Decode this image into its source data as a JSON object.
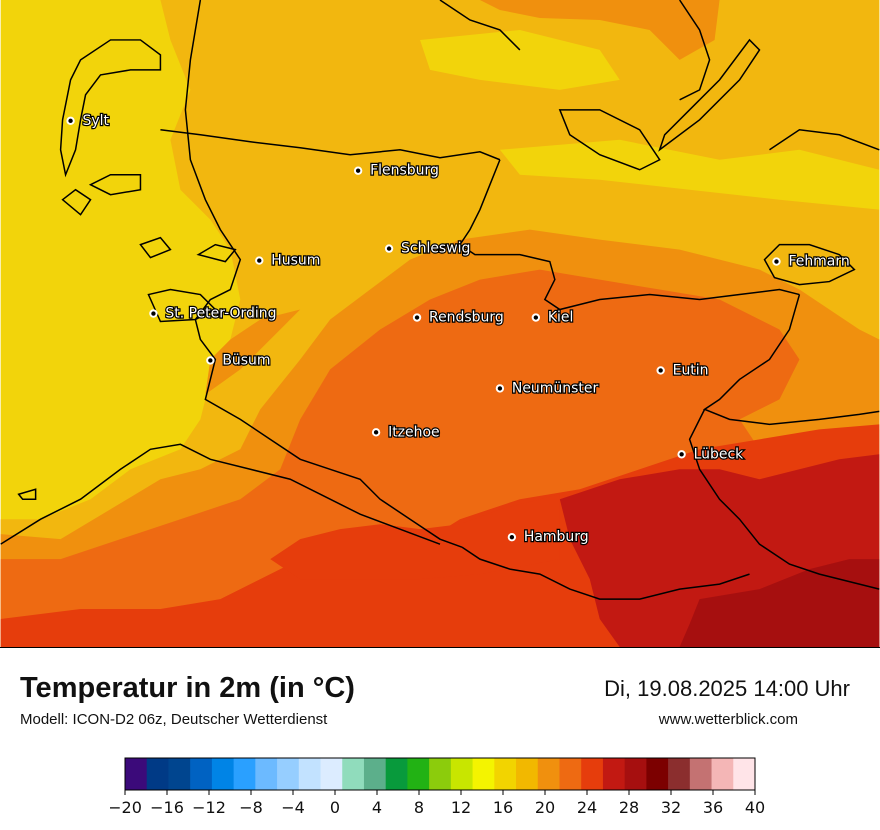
{
  "header": {
    "title": "Temperatur in 2m (in °C)",
    "model": "Modell: ICON-D2 06z, Deutscher Wetterdienst",
    "datetime": "Di, 19.08.2025 14:00 Uhr",
    "website": "www.wetterblick.com"
  },
  "cities": [
    {
      "name": "Sylt"
    },
    {
      "name": "Flensburg"
    },
    {
      "name": "Schleswig"
    },
    {
      "name": "Husum"
    },
    {
      "name": "Fehmarn"
    },
    {
      "name": "St. Peter-Ording"
    },
    {
      "name": "Rendsburg"
    },
    {
      "name": "Kiel"
    },
    {
      "name": "Büsum"
    },
    {
      "name": "Eutin"
    },
    {
      "name": "Neumünster"
    },
    {
      "name": "Itzehoe"
    },
    {
      "name": "Lübeck"
    },
    {
      "name": "Hamburg"
    }
  ],
  "legend": {
    "colors": [
      "#3b0a7a",
      "#003a86",
      "#00458f",
      "#0062c2",
      "#0084e6",
      "#2aa0ff",
      "#6cbaff",
      "#96ceff",
      "#c2e2ff",
      "#dcecff",
      "#90dcbc",
      "#5caf8b",
      "#089a3c",
      "#22b214",
      "#8ccc0c",
      "#c8e600",
      "#f4f400",
      "#f2d400",
      "#f2b800",
      "#f0900e",
      "#ee6a12",
      "#e63d0c",
      "#c21912",
      "#a60f0f",
      "#7c0000",
      "#8b2e2e",
      "#c47272",
      "#f4b6b6",
      "#ffe4e8"
    ],
    "ticks": [
      "−20",
      "−16",
      "−12",
      "−8",
      "−4",
      "0",
      "4",
      "8",
      "12",
      "16",
      "20",
      "24",
      "28",
      "32",
      "36",
      "40"
    ]
  }
}
